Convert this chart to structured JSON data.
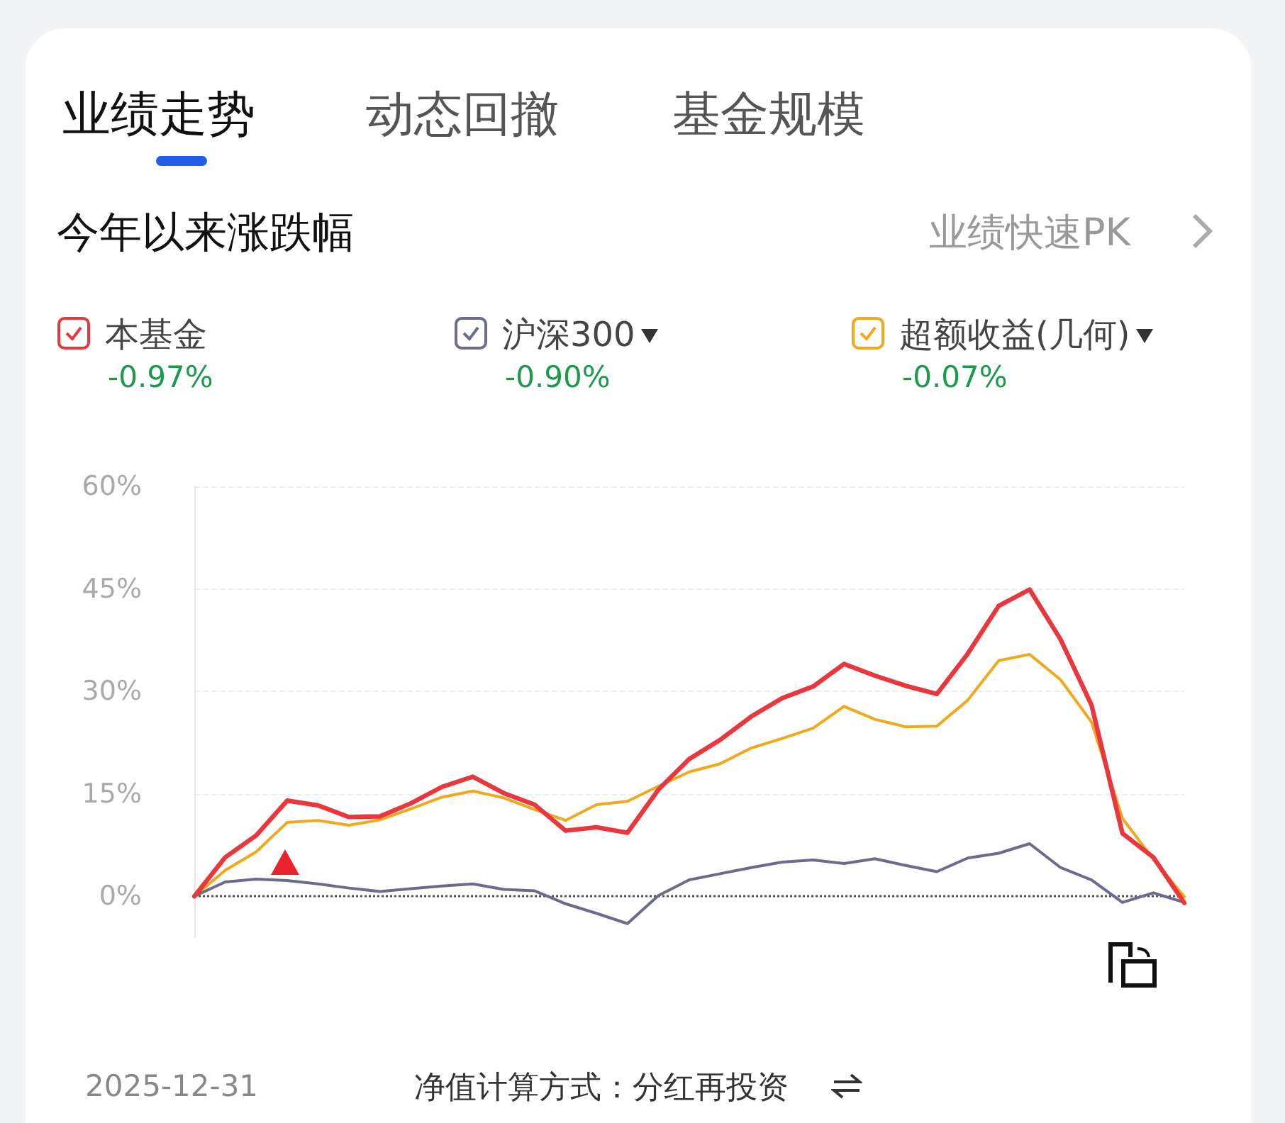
{
  "chart_data": {
    "type": "line",
    "title": "今年以来涨跌幅",
    "annotations": [
      "业绩走势",
      "动态回撤",
      "基金规模",
      "业绩快速PK",
      "-0.97%",
      "-0.90%",
      "-0.07%",
      "2025-12-31",
      "净值计算方式：分红再投资"
    ],
    "categories": [
      null,
      null,
      null,
      null,
      null,
      null,
      null,
      null,
      null,
      null,
      null,
      null,
      null,
      null,
      null,
      null,
      null,
      null,
      null,
      null,
      null,
      null,
      null,
      null,
      null,
      null,
      null,
      null,
      null,
      null,
      null,
      null,
      null
    ],
    "series": [
      {
        "name": "本基金",
        "color": "#e8383d",
        "values": [
          0,
          5.7,
          8.9,
          14.0,
          13.3,
          11.6,
          11.7,
          13.6,
          16.0,
          17.5,
          15.1,
          13.4,
          9.6,
          10.1,
          9.3,
          15.6,
          20.1,
          22.9,
          26.3,
          29.0,
          30.7,
          34.0,
          32.3,
          30.8,
          29.6,
          35.5,
          42.5,
          44.9,
          37.6,
          28.0,
          9.2,
          5.7,
          -0.97
        ]
      },
      {
        "name": "沪深300",
        "color": "#6b6b8e",
        "values": [
          0,
          2.1,
          2.5,
          2.3,
          1.8,
          1.2,
          0.7,
          1.1,
          1.5,
          1.8,
          1.0,
          0.8,
          -1.1,
          -2.5,
          -4.0,
          0.1,
          2.4,
          3.3,
          4.2,
          5.0,
          5.3,
          4.8,
          5.5,
          4.5,
          3.6,
          5.6,
          6.3,
          7.7,
          4.2,
          2.4,
          -0.9,
          0.5,
          -0.9
        ]
      },
      {
        "name": "超额收益(几何)",
        "color": "#f0a81c",
        "values": [
          0,
          3.8,
          6.5,
          10.8,
          11.1,
          10.4,
          11.2,
          12.8,
          14.5,
          15.4,
          14.4,
          12.7,
          11.1,
          13.4,
          13.9,
          16.1,
          18.2,
          19.4,
          21.7,
          23.1,
          24.6,
          27.8,
          25.9,
          24.8,
          24.9,
          28.7,
          34.5,
          35.4,
          31.7,
          25.5,
          11.4,
          5.4,
          -0.07
        ]
      }
    ],
    "ylim": [
      -6,
      60
    ],
    "yticks": [
      {
        "value": 0,
        "label": "0%"
      },
      {
        "value": 15,
        "label": "15%"
      },
      {
        "value": 30,
        "label": "30%"
      },
      {
        "value": 45,
        "label": "45%"
      },
      {
        "value": 60,
        "label": "60%"
      }
    ],
    "tick_labels": "y",
    "grid": "y",
    "legend": "top",
    "marker": "none",
    "line_style": "solid",
    "ref_lines": [
      {
        "axis": "y",
        "value": 0,
        "line_style": "dotted",
        "color": "#555555"
      }
    ]
  }
}
